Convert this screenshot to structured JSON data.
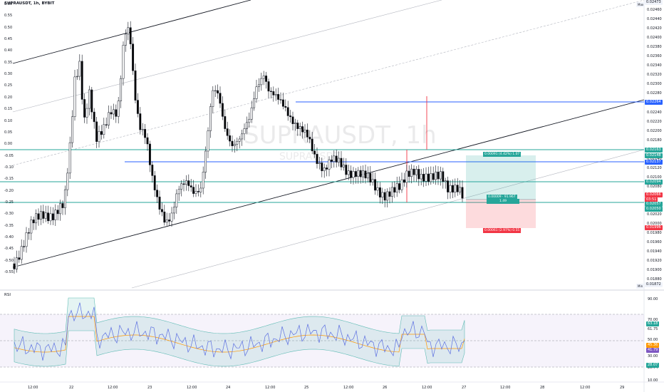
{
  "symbol_title": "SUPRAUSDT, 1h, BYBIT",
  "watermark": "SUPRAUSDT, 1h",
  "watermark_sub": "SUPRAUSDT",
  "left_axis": [
    "0.60",
    "0.55",
    "0.50",
    "0.45",
    "0.40",
    "0.35",
    "0.30",
    "0.25",
    "0.20",
    "0.15",
    "0.10",
    "0.05",
    "0.00",
    "-0.05",
    "-0.10",
    "-0.15",
    "-0.20",
    "-0.25",
    "-0.30",
    "-0.35",
    "-0.40",
    "-0.45",
    "-0.50",
    "-0.55"
  ],
  "right_axis": [
    "0.02460",
    "0.02440",
    "0.02420",
    "0.02400",
    "0.02380",
    "0.02360",
    "0.02340",
    "0.02320",
    "0.02300",
    "0.02280",
    "0.02260",
    "0.02240",
    "0.02220",
    "0.02200",
    "0.02180",
    "0.02160",
    "0.02140",
    "0.02120",
    "0.02100",
    "0.02080",
    "0.02060",
    "0.02040",
    "0.02020",
    "0.02000",
    "0.01980",
    "0.01960",
    "0.01940",
    "0.01920",
    "0.01900",
    "0.01880"
  ],
  "price_tags": {
    "max": "0.02473",
    "max_label": "Max",
    "blue_high": "0.02264",
    "teal_1": "0.02163",
    "teal_2": "0.02148",
    "blue_mid": "0.02137",
    "teal_3": "0.02094",
    "red_current": "0.02066",
    "countdown": "03:51",
    "teal_4": "0.02057",
    "teal_5": "0.02050",
    "red_stop": "0.01996",
    "min": "0.01872",
    "min_label": "Min"
  },
  "position_box": {
    "target": "0.00091 (4.42%) 1.07",
    "entry": "0.00009 · 91.967",
    "entry_ratio": "1.49",
    "stop": "0.00061 (2.97%) 0.55"
  },
  "rsi": {
    "label": "RSI",
    "axis": [
      "90.00",
      "70.00",
      "61.75",
      "50.00",
      "30.00",
      "25.74",
      "10.00"
    ],
    "tag_upper": "63.18",
    "tag_mid": "45.36",
    "tag_rsi": "41.79",
    "tag_lower": "28.07"
  },
  "time_axis": [
    "12:00",
    "22",
    "12:00",
    "23",
    "12:00",
    "24",
    "12:00",
    "25",
    "12:00",
    "26",
    "12:00",
    "27",
    "12:00",
    "28",
    "12:00",
    "29"
  ],
  "colors": {
    "up": "#ffffff",
    "down": "#000000",
    "teal": "#26a69a",
    "blue": "#2962ff",
    "red": "#f23645",
    "rsi_line": "#5b6ee1",
    "rsi_ma": "#ff9800"
  }
}
